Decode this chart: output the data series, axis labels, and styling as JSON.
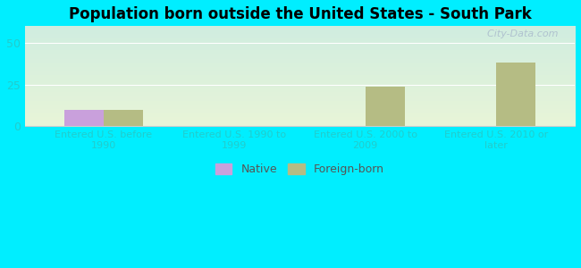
{
  "title": "Population born outside the United States - South Park",
  "categories": [
    "Entered U.S. before\n1990",
    "Entered U.S. 1990 to\n1999",
    "Entered U.S. 2000 to\n2009",
    "Entered U.S. 2010 or\nlater"
  ],
  "native_values": [
    10,
    0,
    0,
    0
  ],
  "foreign_values": [
    10,
    0,
    24,
    38
  ],
  "native_color": "#c9a0dc",
  "foreign_color": "#b5bc84",
  "background_outer": "#00eeff",
  "gradient_top": "#d0ede0",
  "gradient_bottom": "#e8f5d8",
  "ylim": [
    0,
    60
  ],
  "yticks": [
    0,
    25,
    50
  ],
  "bar_width": 0.3,
  "title_fontsize": 12,
  "tick_label_fontsize": 8,
  "axis_label_color": "#22cccc",
  "tick_color": "#22cccc",
  "watermark": "  City-Data.com",
  "legend_native": "Native",
  "legend_foreign": "Foreign-born",
  "grid_color": "#ffffff",
  "spine_color": "#cccccc"
}
